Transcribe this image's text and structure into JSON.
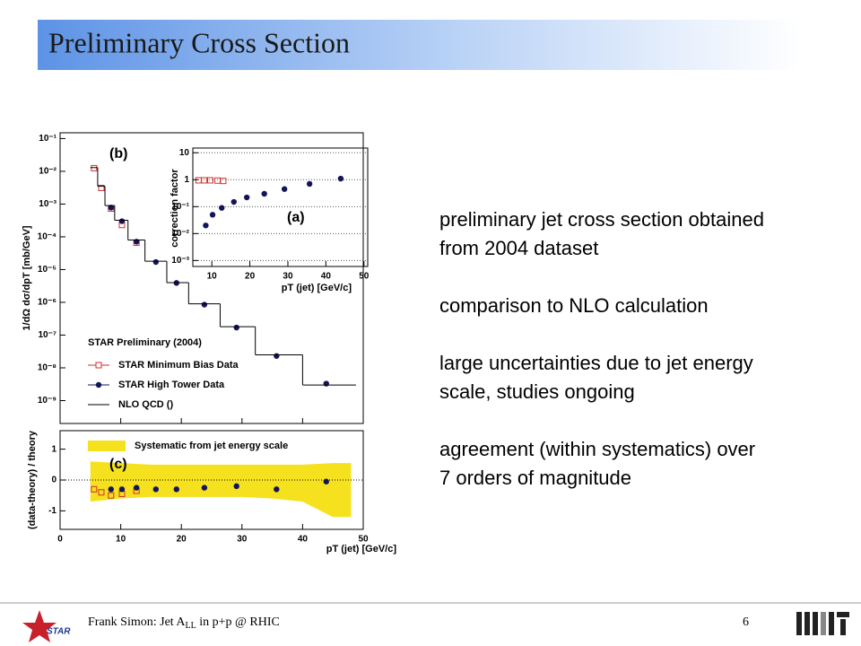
{
  "header": {
    "title": "Preliminary Cross Section"
  },
  "bullets": [
    [
      "preliminary jet cross section obtained",
      "from 2004 dataset"
    ],
    [
      "comparison to NLO calculation"
    ],
    [
      "large uncertainties due to jet energy",
      "scale, studies ongoing"
    ],
    [
      "agreement (within systematics) over",
      "7 orders of magnitude"
    ]
  ],
  "footer": {
    "text": [
      "Frank Simon: Jet A",
      "LL",
      " in p+p @ RHIC"
    ],
    "page": "6",
    "logo": "STAR"
  },
  "chart_data": [
    {
      "type": "line",
      "panel_label": "(b)",
      "ylabel": "1/dΩ  dσ/dpT  [mb/GeV]",
      "xlim": [
        0,
        50
      ],
      "xticks": [
        0,
        10,
        20,
        30,
        40,
        50
      ],
      "ylim": [
        2e-10,
        0.15
      ],
      "log_y": true,
      "yticks": [
        {
          "value": 1e-09,
          "label": "10⁻⁹"
        },
        {
          "value": 1e-08,
          "label": "10⁻⁸"
        },
        {
          "value": 1e-07,
          "label": "10⁻⁷"
        },
        {
          "value": 1e-06,
          "label": "10⁻⁶"
        },
        {
          "value": 1e-05,
          "label": "10⁻⁵"
        },
        {
          "value": 0.0001,
          "label": "10⁻⁴"
        },
        {
          "value": 0.001,
          "label": "10⁻³"
        },
        {
          "value": 0.01,
          "label": "10⁻²"
        },
        {
          "value": 0.1,
          "label": "10⁻¹"
        }
      ],
      "legend_title": "STAR Preliminary (2004)",
      "series": [
        {
          "name": "STAR Minimum Bias Data",
          "color": "#d03030",
          "marker": "open-square",
          "x": [
            5.6,
            6.8,
            8.4,
            10.2,
            12.6
          ],
          "values": [
            0.0125,
            0.0031,
            0.00073,
            0.00023,
            6.6e-05
          ]
        },
        {
          "name": "STAR High Tower Data",
          "color": "#14145a",
          "marker": "circle",
          "x": [
            8.4,
            10.2,
            12.6,
            15.8,
            19.2,
            23.8,
            29.1,
            35.7,
            43.9
          ],
          "values": [
            0.00078,
            0.0003,
            7.1e-05,
            1.7e-05,
            3.9e-06,
            8.5e-07,
            1.7e-07,
            2.3e-08,
            3.3e-09
          ]
        },
        {
          "name": "NLO QCD ()",
          "color": "#000000",
          "marker": "step",
          "bins": [
            5,
            6.2,
            7.4,
            9,
            11.2,
            14,
            17.6,
            21.2,
            26.4,
            32.2,
            40,
            48.8
          ],
          "values": [
            0.013,
            0.0035,
            0.0009,
            0.00032,
            8e-05,
            1.8e-05,
            4e-06,
            9e-07,
            1.8e-07,
            2.5e-08,
            3e-09
          ]
        }
      ]
    },
    {
      "type": "line",
      "panel_label": "(a)",
      "ylabel": "correction  factor",
      "xlabel": "pT (jet)  [GeV/c]",
      "xlim": [
        5,
        51
      ],
      "xticks": [
        10,
        20,
        30,
        40,
        50
      ],
      "ylim": [
        0.0006,
        15
      ],
      "log_y": true,
      "grid": true,
      "yticks": [
        {
          "value": 0.001,
          "label": "10⁻³"
        },
        {
          "value": 0.01,
          "label": "10⁻²"
        },
        {
          "value": 0.1,
          "label": "10⁻¹"
        },
        1,
        10
      ],
      "series": [
        {
          "color": "#d03030",
          "marker": "open-square",
          "x": [
            6.5,
            8,
            9.6,
            11.5,
            13
          ],
          "values": [
            0.95,
            0.95,
            0.95,
            0.93,
            0.9
          ]
        },
        {
          "color": "#14145a",
          "marker": "circle",
          "x": [
            8.4,
            10.2,
            12.6,
            15.8,
            19.2,
            23.8,
            29.1,
            35.7,
            43.9
          ],
          "values": [
            0.02,
            0.05,
            0.09,
            0.15,
            0.22,
            0.3,
            0.45,
            0.7,
            1.1
          ]
        }
      ]
    },
    {
      "type": "line",
      "panel_label": "(c)",
      "ylabel": "(data-theory) /  theory",
      "xlabel": "pT (jet)  [GeV/c]",
      "xlim": [
        0,
        50
      ],
      "xticks": [
        0,
        10,
        20,
        30,
        40,
        50
      ],
      "ylim": [
        -1.6,
        1.6
      ],
      "yticks": [
        -1,
        0,
        1
      ],
      "series": [
        {
          "name": "Systematic from jet energy scale",
          "color": "#f5e11e",
          "marker": "band",
          "x": [
            5,
            10,
            15,
            20,
            25,
            30,
            35,
            40,
            45,
            48
          ],
          "upper": [
            0.6,
            0.55,
            0.5,
            0.5,
            0.5,
            0.5,
            0.5,
            0.5,
            0.55,
            0.55
          ],
          "lower": [
            -0.7,
            -0.6,
            -0.55,
            -0.55,
            -0.55,
            -0.55,
            -0.6,
            -0.7,
            -1.2,
            -1.2
          ]
        },
        {
          "color": "#d03030",
          "marker": "open-square",
          "x": [
            5.6,
            6.8,
            8.4,
            10.2,
            12.6
          ],
          "values": [
            -0.3,
            -0.4,
            -0.5,
            -0.45,
            -0.35
          ]
        },
        {
          "color": "#14145a",
          "marker": "circle",
          "x": [
            8.4,
            10.2,
            12.6,
            15.8,
            19.2,
            23.8,
            29.1,
            35.7,
            43.9
          ],
          "values": [
            -0.3,
            -0.3,
            -0.25,
            -0.3,
            -0.3,
            -0.25,
            -0.2,
            -0.3,
            -0.05
          ]
        }
      ]
    }
  ]
}
